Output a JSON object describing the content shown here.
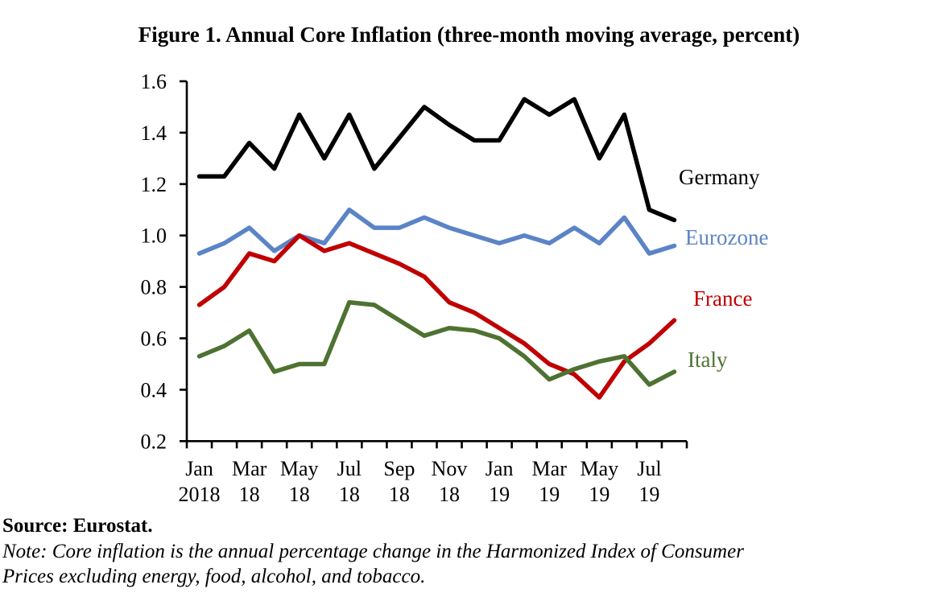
{
  "figure": {
    "title": "Figure 1. Annual Core Inflation (three-month moving average, percent)",
    "source": "Source: Eurostat.",
    "note_lines": [
      "Note: Core inflation is the annual percentage change in the Harmonized Index of Consumer",
      "Prices excluding energy, food, alcohol, and tobacco."
    ]
  },
  "chart_data": {
    "type": "line",
    "title": "Figure 1. Annual Core Inflation (three-month moving average, percent)",
    "x": [
      "Jan 2018",
      "Feb 2018",
      "Mar 2018",
      "Apr 2018",
      "May 2018",
      "Jun 2018",
      "Jul 2018",
      "Aug 2018",
      "Sep 2018",
      "Oct 2018",
      "Nov 2018",
      "Dec 2018",
      "Jan 2019",
      "Feb 2019",
      "Mar 2019",
      "Apr 2019",
      "May 2019",
      "Jun 2019",
      "Jul 2019",
      "Aug 2019"
    ],
    "x_tick_labels": [
      [
        "Jan",
        "2018"
      ],
      [
        "Mar",
        "18"
      ],
      [
        "May",
        "18"
      ],
      [
        "Jul",
        "18"
      ],
      [
        "Sep",
        "18"
      ],
      [
        "Nov",
        "18"
      ],
      [
        "Jan",
        "19"
      ],
      [
        "Mar",
        "19"
      ],
      [
        "May",
        "19"
      ],
      [
        "Jul",
        "19"
      ]
    ],
    "ylim": [
      0.2,
      1.6
    ],
    "y_ticks": [
      0.2,
      0.4,
      0.6,
      0.8,
      1.0,
      1.2,
      1.4,
      1.6
    ],
    "grid": false,
    "legend_position": "right-end-of-lines",
    "series": [
      {
        "name": "Germany",
        "color": "#000000",
        "values": [
          1.23,
          1.23,
          1.36,
          1.26,
          1.47,
          1.3,
          1.47,
          1.26,
          1.38,
          1.5,
          1.43,
          1.37,
          1.37,
          1.53,
          1.47,
          1.53,
          1.3,
          1.47,
          1.1,
          1.06
        ]
      },
      {
        "name": "Eurozone",
        "color": "#5b84c7",
        "values": [
          0.93,
          0.97,
          1.03,
          0.94,
          1.0,
          0.97,
          1.1,
          1.03,
          1.03,
          1.07,
          1.03,
          1.0,
          0.97,
          1.0,
          0.97,
          1.03,
          0.97,
          1.07,
          0.93,
          0.96
        ]
      },
      {
        "name": "France",
        "color": "#c00000",
        "values": [
          0.73,
          0.8,
          0.93,
          0.9,
          1.0,
          0.94,
          0.97,
          0.93,
          0.89,
          0.84,
          0.74,
          0.7,
          0.64,
          0.58,
          0.5,
          0.46,
          0.37,
          0.51,
          0.58,
          0.67
        ]
      },
      {
        "name": "Italy",
        "color": "#4e7231",
        "values": [
          0.53,
          0.57,
          0.63,
          0.47,
          0.5,
          0.5,
          0.74,
          0.73,
          0.67,
          0.61,
          0.64,
          0.63,
          0.6,
          0.53,
          0.44,
          0.48,
          0.51,
          0.53,
          0.42,
          0.47
        ]
      }
    ]
  }
}
